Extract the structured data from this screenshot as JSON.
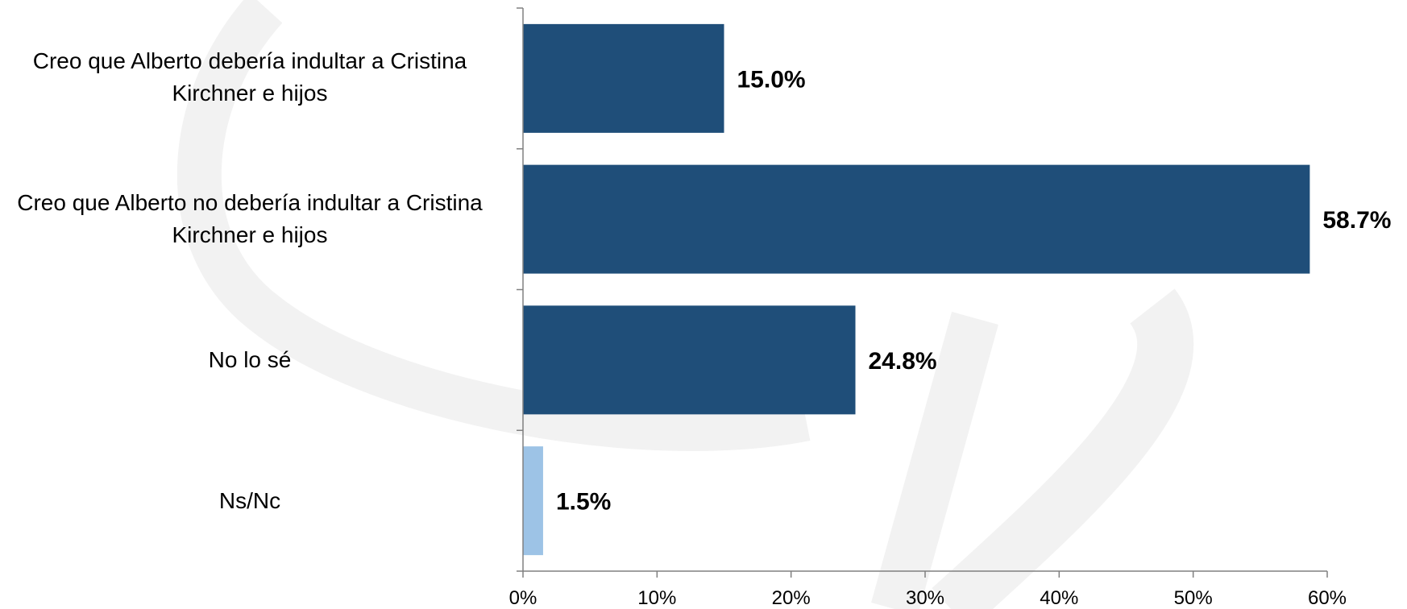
{
  "chart_data": {
    "type": "bar",
    "orientation": "horizontal",
    "categories": [
      "Creo que Alberto debería indultar a Cristina Kirchner e hijos",
      "Creo que Alberto no debería indultar a Cristina Kirchner e hijos",
      "No lo sé",
      "Ns/Nc"
    ],
    "values": [
      15.0,
      58.7,
      24.8,
      1.5
    ],
    "value_labels": [
      "15.0%",
      "58.7%",
      "24.8%",
      "1.5%"
    ],
    "bar_colors": [
      "#1f4e79",
      "#1f4e79",
      "#1f4e79",
      "#9dc3e6"
    ],
    "xlim": [
      0,
      60
    ],
    "x_ticks": [
      0,
      10,
      20,
      30,
      40,
      50,
      60
    ],
    "x_tick_labels": [
      "0%",
      "10%",
      "20%",
      "30%",
      "40%",
      "50%",
      "60%"
    ],
    "grid": false,
    "legend": "none"
  }
}
